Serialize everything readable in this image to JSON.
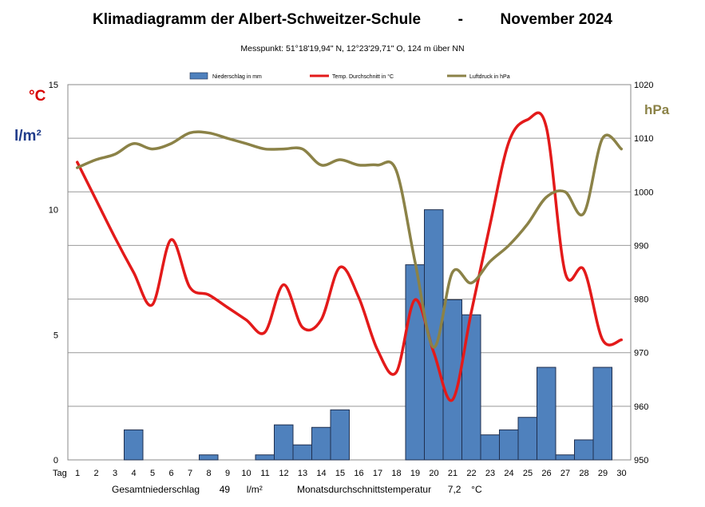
{
  "title_left": "Klimadiagramm der Albert-Schweitzer-Schule",
  "title_sep": "-",
  "title_right": "November 2024",
  "subtitle": "Messpunkt:  51°18'19,94\" N,  12°23'29,71\" O,  124 m über NN",
  "axis_label_temp": "°C",
  "axis_label_precip": "l/m²",
  "axis_label_pressure": "hPa",
  "x_axis_title": "Tag",
  "footer": {
    "precip_label": "Gesamtniederschlag",
    "precip_value": "49",
    "precip_unit": "l/m²",
    "temp_label": "Monatsdurchschnittstemperatur",
    "temp_value": "7,2",
    "temp_unit": "°C"
  },
  "colors": {
    "bar_fill": "#4f81bd",
    "bar_stroke": "#1f2f4f",
    "temp_line": "#e31a1a",
    "pressure_line": "#8b8247",
    "grid": "#999999"
  },
  "chart_data": {
    "type": "bar",
    "title": "Klimadiagramm der Albert-Schweitzer-Schule - November 2024",
    "x": [
      1,
      2,
      3,
      4,
      5,
      6,
      7,
      8,
      9,
      10,
      11,
      12,
      13,
      14,
      15,
      16,
      17,
      18,
      19,
      20,
      21,
      22,
      23,
      24,
      25,
      26,
      27,
      28,
      29,
      30
    ],
    "x_tick_labels": [
      "1",
      "2",
      "3",
      "4",
      "5",
      "6",
      "7",
      "8",
      "9",
      "10",
      "11",
      "12",
      "13",
      "14",
      "15",
      "16",
      "17",
      "18",
      "19",
      "20",
      "21",
      "22",
      "23",
      "24",
      "25",
      "26",
      "27",
      "28",
      "29",
      "30"
    ],
    "ylim_left": [
      0,
      15
    ],
    "y_left_ticks": [
      0,
      5,
      10,
      15
    ],
    "ylim_right": [
      950,
      1020
    ],
    "y_right_ticks": [
      950,
      960,
      970,
      980,
      990,
      1000,
      1010,
      1020
    ],
    "grid": true,
    "legend_position": "top",
    "series": [
      {
        "name": "Niederschlag in mm",
        "type": "bar",
        "axis": "left",
        "values": [
          0,
          0,
          0,
          1.2,
          0,
          0,
          0,
          0.2,
          0,
          0,
          0.2,
          1.4,
          0.6,
          1.3,
          2.0,
          0,
          0,
          0,
          7.8,
          10.0,
          6.4,
          5.8,
          1.0,
          1.2,
          1.7,
          3.7,
          0.2,
          0.8,
          3.7,
          0
        ]
      },
      {
        "name": "Temp. Durchschnitt in °C",
        "type": "line",
        "axis": "left",
        "values": [
          11.9,
          10.4,
          8.9,
          7.5,
          6.2,
          8.8,
          6.9,
          6.6,
          6.1,
          5.6,
          5.1,
          7.0,
          5.3,
          5.6,
          7.7,
          6.5,
          4.4,
          3.5,
          6.4,
          4.3,
          2.4,
          5.9,
          9.4,
          12.7,
          13.6,
          13.3,
          7.5,
          7.6,
          4.8,
          4.8
        ]
      },
      {
        "name": "Luftdruck in hPa",
        "type": "line",
        "axis": "right",
        "values": [
          1004.5,
          1006,
          1007,
          1009,
          1008,
          1009,
          1011,
          1011,
          1010,
          1009,
          1008,
          1008,
          1008,
          1005,
          1006,
          1005,
          1005,
          1004,
          987,
          971,
          985,
          983,
          987,
          990,
          994,
          999,
          1000,
          996,
          1010,
          1008
        ]
      }
    ]
  }
}
